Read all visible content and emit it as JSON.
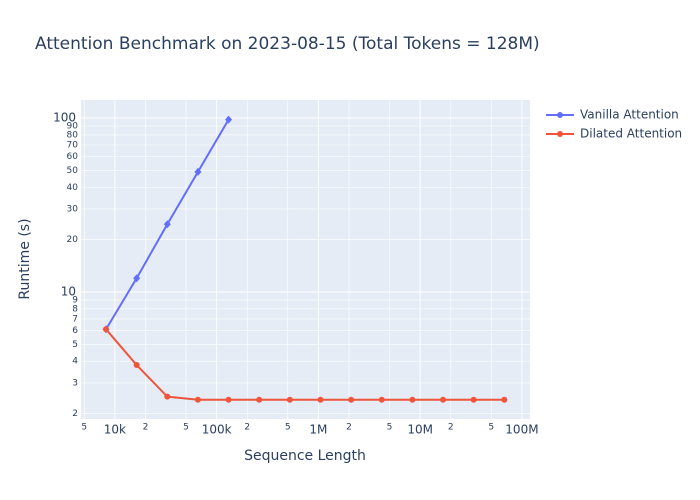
{
  "chart_data": {
    "type": "line",
    "title": "Attention Benchmark on 2023-08-15 (Total Tokens = 128M)",
    "x_label": "Sequence Length",
    "y_label": "Runtime (s)",
    "x_scale": "log",
    "y_scale": "log",
    "x": [
      8192,
      16384,
      32768,
      65536,
      131072,
      262144,
      524288,
      1048576,
      2097152,
      4194304,
      8388608,
      16777216,
      33554432,
      67108864
    ],
    "series": [
      {
        "name": "Vanilla Attention",
        "color": "#636efa",
        "marker": "diamond",
        "values": [
          6.1,
          12,
          24.5,
          49,
          98,
          null,
          null,
          null,
          null,
          null,
          null,
          null,
          null,
          null
        ]
      },
      {
        "name": "Dilated Attention",
        "color": "#ef553b",
        "marker": "circle",
        "values": [
          6.1,
          3.8,
          2.5,
          2.4,
          2.4,
          2.4,
          2.4,
          2.4,
          2.4,
          2.4,
          2.4,
          2.4,
          2.4,
          2.4
        ]
      }
    ],
    "xlim": [
      4650,
      120000000
    ],
    "ylim": [
      1.86,
      127
    ],
    "xticks": [
      {
        "value": 5000,
        "label": "5"
      },
      {
        "value": 10000,
        "label": "10k"
      },
      {
        "value": 20000,
        "label": "2"
      },
      {
        "value": 50000,
        "label": "5"
      },
      {
        "value": 100000,
        "label": "100k"
      },
      {
        "value": 200000,
        "label": "2"
      },
      {
        "value": 500000,
        "label": "5"
      },
      {
        "value": 1000000,
        "label": "1M"
      },
      {
        "value": 2000000,
        "label": "2"
      },
      {
        "value": 5000000,
        "label": "5"
      },
      {
        "value": 10000000,
        "label": "10M"
      },
      {
        "value": 20000000,
        "label": "2"
      },
      {
        "value": 50000000,
        "label": "5"
      },
      {
        "value": 100000000,
        "label": "100M"
      }
    ],
    "yticks": [
      2,
      3,
      4,
      5,
      6,
      7,
      8,
      9,
      10,
      20,
      30,
      40,
      50,
      60,
      70,
      80,
      90,
      100
    ],
    "grid": true,
    "legend": "outside-right"
  }
}
